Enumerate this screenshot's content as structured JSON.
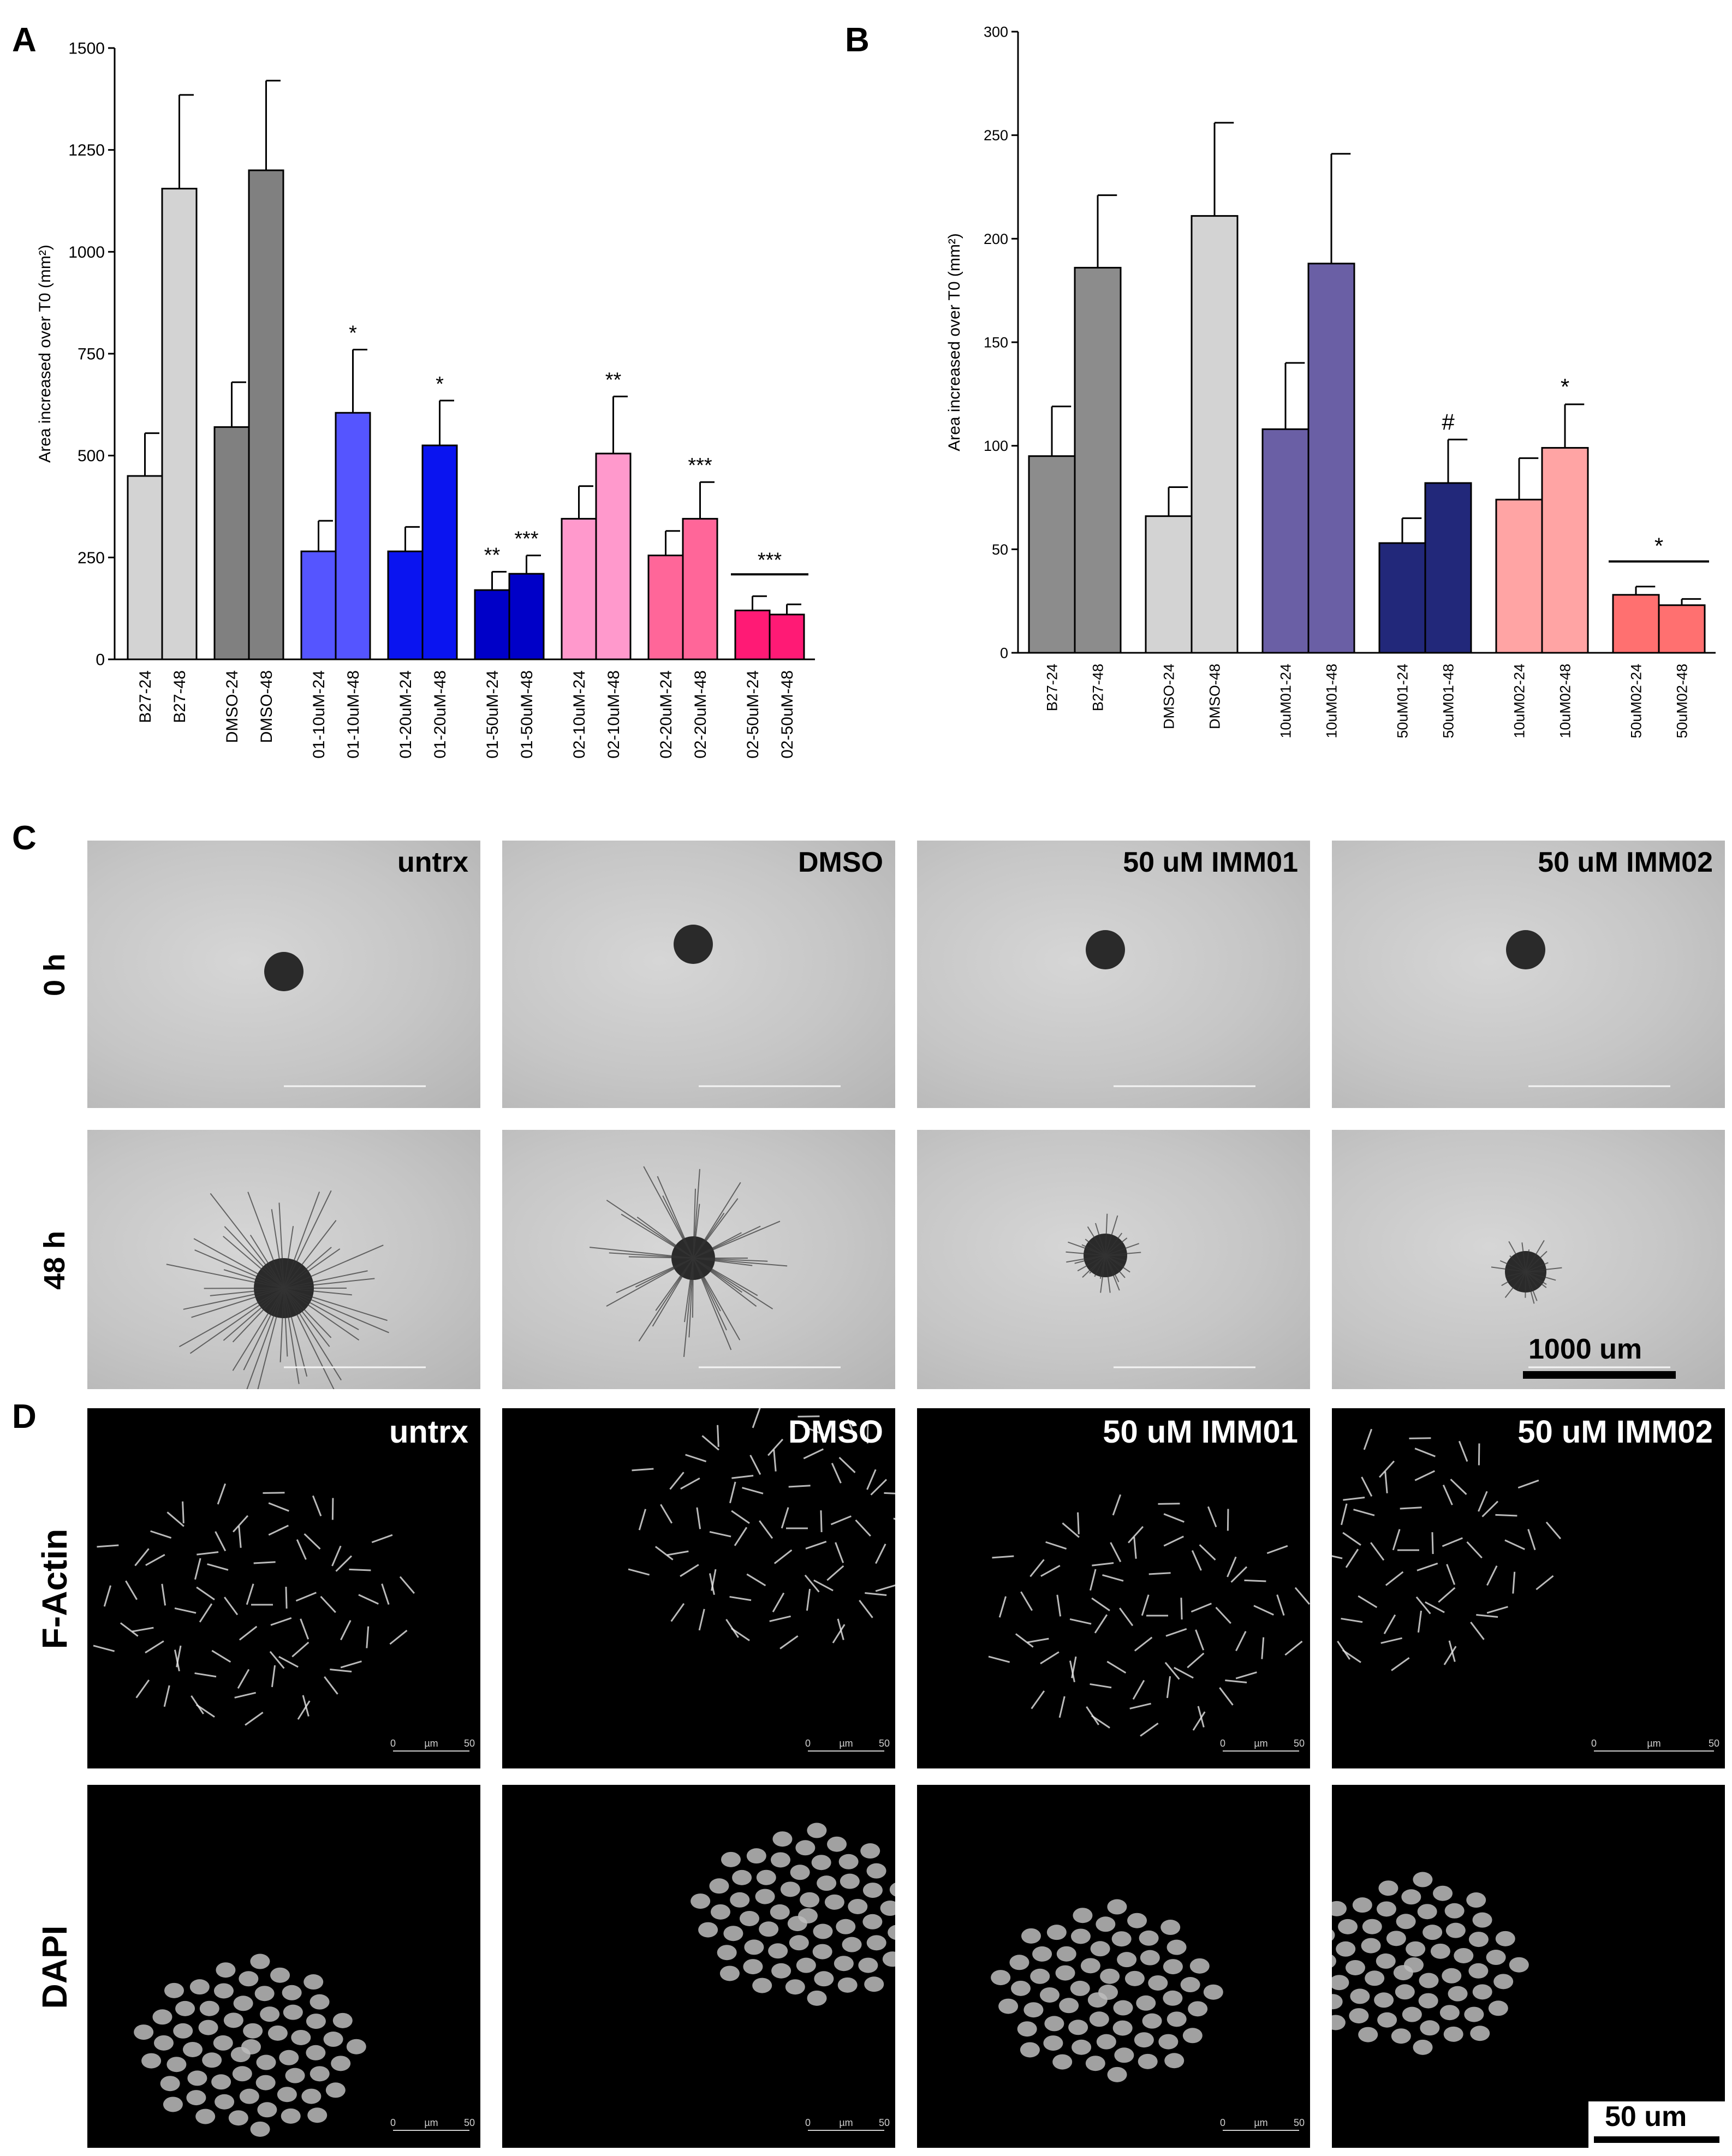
{
  "panels": {
    "a_letter": "A",
    "b_letter": "B",
    "c_letter": "C",
    "d_letter": "D"
  },
  "chart_data": [
    {
      "id": "A",
      "type": "bar",
      "ylabel": "Area increased over T0 (mm²)",
      "ylim": [
        0,
        1500
      ],
      "yticks": [
        0,
        250,
        500,
        750,
        1000,
        1250,
        1500
      ],
      "categories": [
        "B27-24",
        "B27-48",
        "DMSO-24",
        "DMSO-48",
        "01-10uM-24",
        "01-10uM-48",
        "01-20uM-24",
        "01-20uM-48",
        "01-50uM-24",
        "01-50uM-48",
        "02-10uM-24",
        "02-10uM-48",
        "02-20uM-24",
        "02-20uM-48",
        "02-50uM-24",
        "02-50uM-48"
      ],
      "values": [
        450,
        1155,
        570,
        1200,
        265,
        605,
        265,
        525,
        170,
        210,
        345,
        505,
        255,
        345,
        120,
        110
      ],
      "errors": [
        105,
        230,
        110,
        220,
        75,
        155,
        60,
        110,
        45,
        45,
        80,
        140,
        60,
        90,
        35,
        25
      ],
      "colors": [
        "#d3d3d3",
        "#d3d3d3",
        "#808080",
        "#808080",
        "#5555ff",
        "#5555ff",
        "#0a14f0",
        "#0a14f0",
        "#0000c8",
        "#0000c8",
        "#ff99cc",
        "#ff99cc",
        "#ff6699",
        "#ff6699",
        "#ff1a75",
        "#ff1a75"
      ],
      "annotations": [
        "",
        "",
        "",
        "",
        "",
        "*",
        "",
        "*",
        "**",
        "***",
        "",
        "**",
        "",
        "***",
        "",
        ""
      ],
      "group_annotation": {
        "label": "***",
        "from": 14,
        "to": 15
      }
    },
    {
      "id": "B",
      "type": "bar",
      "ylabel": "Area increased over T0 (mm²)",
      "ylim": [
        0,
        300
      ],
      "yticks": [
        0,
        50,
        100,
        150,
        200,
        250,
        300
      ],
      "categories": [
        "B27-24",
        "B27-48",
        "DMSO-24",
        "DMSO-48",
        "10uM01-24",
        "10uM01-48",
        "50uM01-24",
        "50uM01-48",
        "10uM02-24",
        "10uM02-48",
        "50uM02-24",
        "50uM02-48"
      ],
      "values": [
        95,
        186,
        66,
        211,
        108,
        188,
        53,
        82,
        74,
        99,
        28,
        23
      ],
      "errors": [
        24,
        35,
        14,
        45,
        32,
        53,
        12,
        21,
        20,
        21,
        4,
        3
      ],
      "colors": [
        "#8c8c8c",
        "#8c8c8c",
        "#d3d3d3",
        "#d3d3d3",
        "#6a5fa5",
        "#6a5fa5",
        "#22287a",
        "#22287a",
        "#ffa4a4",
        "#ffa4a4",
        "#ff7070",
        "#ff7070"
      ],
      "annotations": [
        "",
        "",
        "",
        "",
        "",
        "",
        "",
        "#",
        "",
        "*",
        "",
        ""
      ],
      "group_annotation": {
        "label": "*",
        "from": 10,
        "to": 11
      }
    }
  ],
  "panel_c": {
    "row_labels": [
      "0 h",
      "48 h"
    ],
    "column_labels": [
      "untrx",
      "DMSO",
      "50 uM IMM01",
      "50 uM IMM02"
    ],
    "scale_bar": "1000 um"
  },
  "panel_d": {
    "row_labels": [
      "F-Actin",
      "DAPI"
    ],
    "column_labels": [
      "untrx",
      "DMSO",
      "50 uM IMM01",
      "50 uM IMM02"
    ],
    "scale_bar": "50 um",
    "micro_scale": {
      "left": "0",
      "mid": "µm",
      "right": "50"
    }
  }
}
